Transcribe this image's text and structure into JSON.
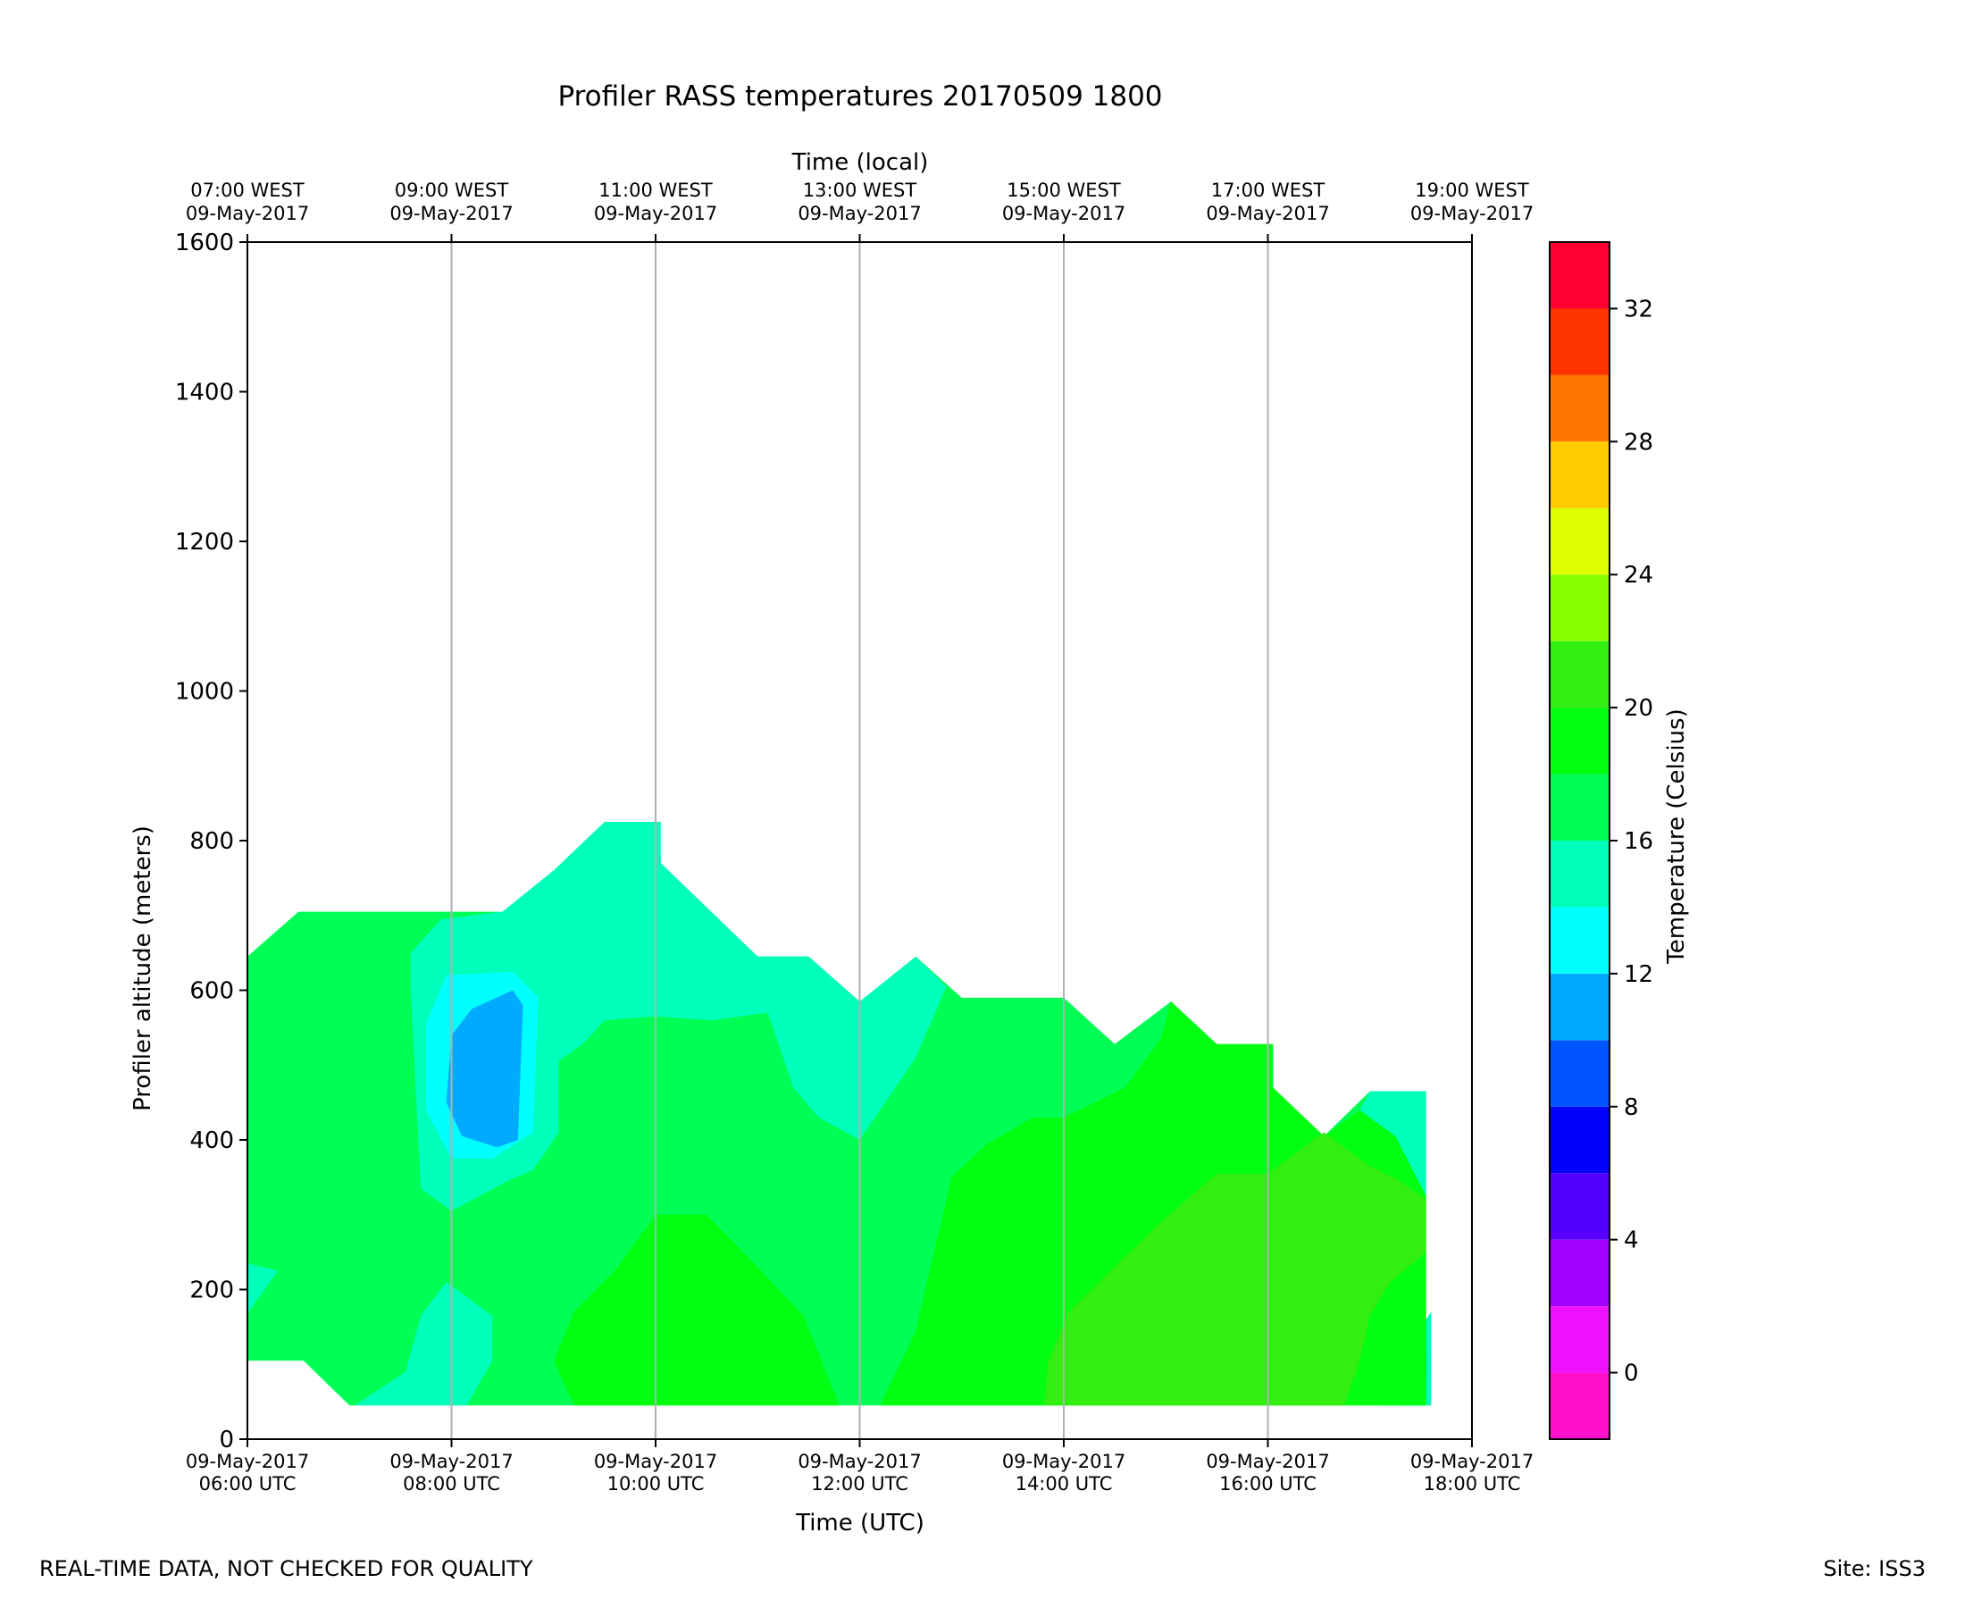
{
  "chart_data": {
    "type": "heatmap",
    "title": "Profiler RASS temperatures 20170509 1800",
    "xlabel": "Time (UTC)",
    "xlabel_top": "Time (local)",
    "ylabel": "Profiler altitude (meters)",
    "colorbar_label": "Temperature (Celsius)",
    "xlim_hours_utc": [
      6,
      18
    ],
    "ylim": [
      0,
      1600
    ],
    "yticks": [
      0,
      200,
      400,
      600,
      800,
      1000,
      1200,
      1400,
      1600
    ],
    "x_ticks": [
      {
        "hour": 6,
        "bottom": [
          "09-May-2017",
          "06:00 UTC"
        ],
        "top": [
          "07:00 WEST",
          "09-May-2017"
        ]
      },
      {
        "hour": 8,
        "bottom": [
          "09-May-2017",
          "08:00 UTC"
        ],
        "top": [
          "09:00 WEST",
          "09-May-2017"
        ]
      },
      {
        "hour": 10,
        "bottom": [
          "09-May-2017",
          "10:00 UTC"
        ],
        "top": [
          "11:00 WEST",
          "09-May-2017"
        ]
      },
      {
        "hour": 12,
        "bottom": [
          "09-May-2017",
          "12:00 UTC"
        ],
        "top": [
          "13:00 WEST",
          "09-May-2017"
        ]
      },
      {
        "hour": 14,
        "bottom": [
          "09-May-2017",
          "14:00 UTC"
        ],
        "top": [
          "15:00 WEST",
          "09-May-2017"
        ]
      },
      {
        "hour": 16,
        "bottom": [
          "09-May-2017",
          "16:00 UTC"
        ],
        "top": [
          "17:00 WEST",
          "09-May-2017"
        ]
      },
      {
        "hour": 18,
        "bottom": [
          "09-May-2017",
          "18:00 UTC"
        ],
        "top": [
          "19:00 WEST",
          "09-May-2017"
        ]
      }
    ],
    "vertical_grid_hours": [
      8,
      10,
      12,
      14,
      16
    ],
    "colorbar": {
      "min": -2,
      "max": 34,
      "step": 2,
      "ticks": [
        0,
        4,
        8,
        12,
        16,
        20,
        24,
        28,
        32
      ],
      "colors": [
        "#ff11cc",
        "#ee11ff",
        "#a400ff",
        "#5500ff",
        "#0000ff",
        "#0055ff",
        "#00aaff",
        "#00ffff",
        "#00ffbb",
        "#00ff55",
        "#00ff11",
        "#33ee11",
        "#88ff00",
        "#ddff00",
        "#ffcc00",
        "#ff7700",
        "#ff3300",
        "#ff0033"
      ]
    },
    "contours": [
      {
        "level": 16,
        "color": "#00ff55",
        "points": [
          [
            6,
            645
          ],
          [
            6.5,
            705
          ],
          [
            8.5,
            705
          ],
          [
            9,
            760
          ],
          [
            9.5,
            825
          ],
          [
            10.05,
            825
          ],
          [
            10.05,
            770
          ],
          [
            11,
            645
          ],
          [
            11.5,
            645
          ],
          [
            12,
            585
          ],
          [
            12.55,
            645
          ],
          [
            13,
            590
          ],
          [
            14,
            590
          ],
          [
            14.5,
            528
          ],
          [
            15.05,
            585
          ],
          [
            15.5,
            528
          ],
          [
            16.05,
            528
          ],
          [
            16.05,
            470
          ],
          [
            16.55,
            405
          ],
          [
            17,
            465
          ],
          [
            17.55,
            465
          ],
          [
            17.55,
            45
          ],
          [
            7,
            45
          ],
          [
            6.55,
            105
          ],
          [
            6,
            105
          ]
        ]
      },
      {
        "level": 14,
        "color": "#00ffbb",
        "points": [
          [
            6,
            168
          ],
          [
            6.3,
            225
          ],
          [
            6,
            235
          ]
        ]
      },
      {
        "level": 14,
        "color": "#00ffbb",
        "points": [
          [
            7.6,
            650
          ],
          [
            7.9,
            695
          ],
          [
            8.5,
            705
          ],
          [
            9,
            760
          ],
          [
            9.5,
            825
          ],
          [
            10.05,
            825
          ],
          [
            10.05,
            770
          ],
          [
            11,
            645
          ],
          [
            11.5,
            645
          ],
          [
            12,
            585
          ],
          [
            12.55,
            645
          ],
          [
            12.85,
            605
          ],
          [
            12.55,
            510
          ],
          [
            12,
            400
          ],
          [
            11.6,
            430
          ],
          [
            11.35,
            470
          ],
          [
            11.1,
            570
          ],
          [
            10.55,
            560
          ],
          [
            10,
            565
          ],
          [
            9.5,
            560
          ],
          [
            9.3,
            530
          ],
          [
            9.05,
            505
          ],
          [
            9.05,
            410
          ],
          [
            8.8,
            360
          ],
          [
            8.55,
            345
          ],
          [
            8,
            305
          ],
          [
            7.7,
            335
          ],
          [
            7.6,
            600
          ]
        ]
      },
      {
        "level": 14,
        "color": "#00ffbb",
        "points": [
          [
            7.05,
            45
          ],
          [
            7.55,
            90
          ],
          [
            7.7,
            165
          ],
          [
            7.95,
            210
          ],
          [
            8.4,
            165
          ],
          [
            8.4,
            105
          ],
          [
            8.15,
            45
          ]
        ]
      },
      {
        "level": 14,
        "color": "#00ffbb",
        "points": [
          [
            17.6,
            45
          ],
          [
            17.1,
            45
          ],
          [
            17.15,
            100
          ],
          [
            17.3,
            110
          ],
          [
            17.6,
            170
          ]
        ]
      },
      {
        "level": 14,
        "color": "#00ffbb",
        "points": [
          [
            16.55,
            405
          ],
          [
            16.9,
            440
          ],
          [
            17,
            465
          ],
          [
            17.55,
            465
          ],
          [
            17.55,
            325
          ],
          [
            17.25,
            345
          ],
          [
            17,
            400
          ]
        ]
      },
      {
        "level": 12,
        "color": "#00ffff",
        "points": [
          [
            7.95,
            620
          ],
          [
            8.6,
            625
          ],
          [
            8.85,
            590
          ],
          [
            8.8,
            410
          ],
          [
            8.4,
            375
          ],
          [
            8,
            375
          ],
          [
            7.75,
            440
          ],
          [
            7.75,
            555
          ]
        ]
      },
      {
        "level": 12,
        "color": "#00ffff",
        "points": [
          [
            17.3,
            100
          ],
          [
            17.55,
            150
          ],
          [
            17.55,
            45
          ],
          [
            17.35,
            45
          ]
        ]
      },
      {
        "level": 10,
        "color": "#00aaff",
        "points": [
          [
            8,
            540
          ],
          [
            8.2,
            575
          ],
          [
            8.6,
            600
          ],
          [
            8.7,
            580
          ],
          [
            8.65,
            400
          ],
          [
            8.45,
            390
          ],
          [
            8.1,
            405
          ],
          [
            7.95,
            450
          ]
        ]
      },
      {
        "level": 8,
        "color": "#0055ff",
        "points": [
          [
            17.45,
            100
          ],
          [
            17.55,
            80
          ],
          [
            17.55,
            115
          ]
        ]
      },
      {
        "level": 18,
        "color": "#00ff11",
        "points": [
          [
            9,
            105
          ],
          [
            9.2,
            170
          ],
          [
            9.6,
            225
          ],
          [
            10,
            300
          ],
          [
            10.5,
            300
          ],
          [
            11,
            230
          ],
          [
            11.45,
            165
          ],
          [
            11.8,
            45
          ],
          [
            9.2,
            45
          ]
        ]
      },
      {
        "level": 18,
        "color": "#00ff11",
        "points": [
          [
            12.2,
            45
          ],
          [
            12.55,
            145
          ],
          [
            12.9,
            350
          ],
          [
            13.25,
            395
          ],
          [
            13.7,
            430
          ],
          [
            14,
            430
          ],
          [
            14.6,
            470
          ],
          [
            14.95,
            535
          ],
          [
            15.05,
            585
          ],
          [
            15.5,
            528
          ],
          [
            16.05,
            528
          ],
          [
            16.05,
            470
          ],
          [
            16.55,
            405
          ],
          [
            16.9,
            440
          ],
          [
            17.25,
            405
          ],
          [
            17.55,
            325
          ],
          [
            17.55,
            45
          ]
        ]
      },
      {
        "level": 20,
        "color": "#33ee11",
        "points": [
          [
            13.8,
            45
          ],
          [
            13.85,
            105
          ],
          [
            14.05,
            170
          ],
          [
            14.5,
            230
          ],
          [
            14.95,
            290
          ],
          [
            15.5,
            355
          ],
          [
            16,
            355
          ],
          [
            16.55,
            410
          ],
          [
            17,
            365
          ],
          [
            17.3,
            345
          ],
          [
            17.55,
            320
          ],
          [
            17.55,
            250
          ],
          [
            17.2,
            210
          ],
          [
            17,
            165
          ],
          [
            16.9,
            105
          ],
          [
            16.75,
            45
          ]
        ]
      }
    ]
  },
  "footer": {
    "left": "REAL-TIME DATA, NOT CHECKED FOR QUALITY",
    "right": "Site: ISS3"
  }
}
